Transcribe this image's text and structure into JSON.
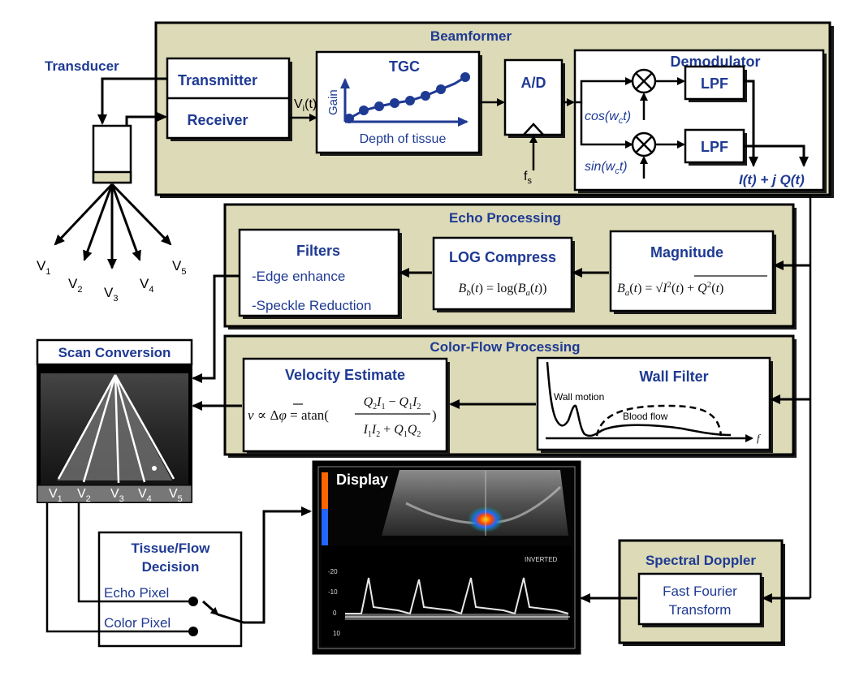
{
  "beamformer": {
    "title": "Beamformer",
    "transmitter": "Transmitter",
    "receiver": "Receiver",
    "vi": "V",
    "vi_sub": "i",
    "vi_arg": "(t)",
    "tgc": {
      "title": "TGC",
      "ylabel": "Gain",
      "xlabel": "Depth of tissue"
    },
    "ad": "A/D",
    "fs": "f",
    "fs_sub": "s",
    "demodulator": {
      "title": "Demodulator",
      "lpf1": "LPF",
      "lpf2": "LPF",
      "cos": "cos(w",
      "cos_sub": "c",
      "cos_end": "t)",
      "sin": "sin(w",
      "sin_sub": "c",
      "sin_end": "t)",
      "iq": "I(t) + j Q(t)"
    }
  },
  "transducer": {
    "label": "Transducer",
    "beams": [
      "V1",
      "V2",
      "V3",
      "V4",
      "V5"
    ]
  },
  "echo_processing": {
    "title": "Echo Processing",
    "filters_title": "Filters",
    "filters_items": [
      "-Edge enhance",
      "-Speckle Reduction"
    ],
    "log_title": "LOG Compress",
    "log_formula": "B_b(t) = log(B_a(t))",
    "mag_title": "Magnitude",
    "mag_formula": "B_a(t) = √(I²(t) + Q²(t))"
  },
  "color_flow": {
    "title": "Color-Flow Processing",
    "vel_title": "Velocity Estimate",
    "wall_title": "Wall Filter",
    "wall_motion": "Wall motion",
    "blood_flow": "Blood flow",
    "f_axis": "f"
  },
  "scan_conversion": {
    "title": "Scan Conversion",
    "beams": [
      "V1",
      "V2",
      "V3",
      "V4",
      "V5"
    ]
  },
  "display": {
    "title": "Display",
    "inverted": "INVERTED",
    "ticks": [
      "-20",
      "-10",
      "0",
      "10"
    ]
  },
  "tissue_flow": {
    "title_line1": "Tissue/Flow",
    "title_line2": "Decision",
    "echo_pixel": "Echo Pixel",
    "color_pixel": "Color Pixel"
  },
  "spectral_doppler": {
    "title": "Spectral Doppler",
    "fft_line1": "Fast Fourier",
    "fft_line2": "Transform"
  }
}
